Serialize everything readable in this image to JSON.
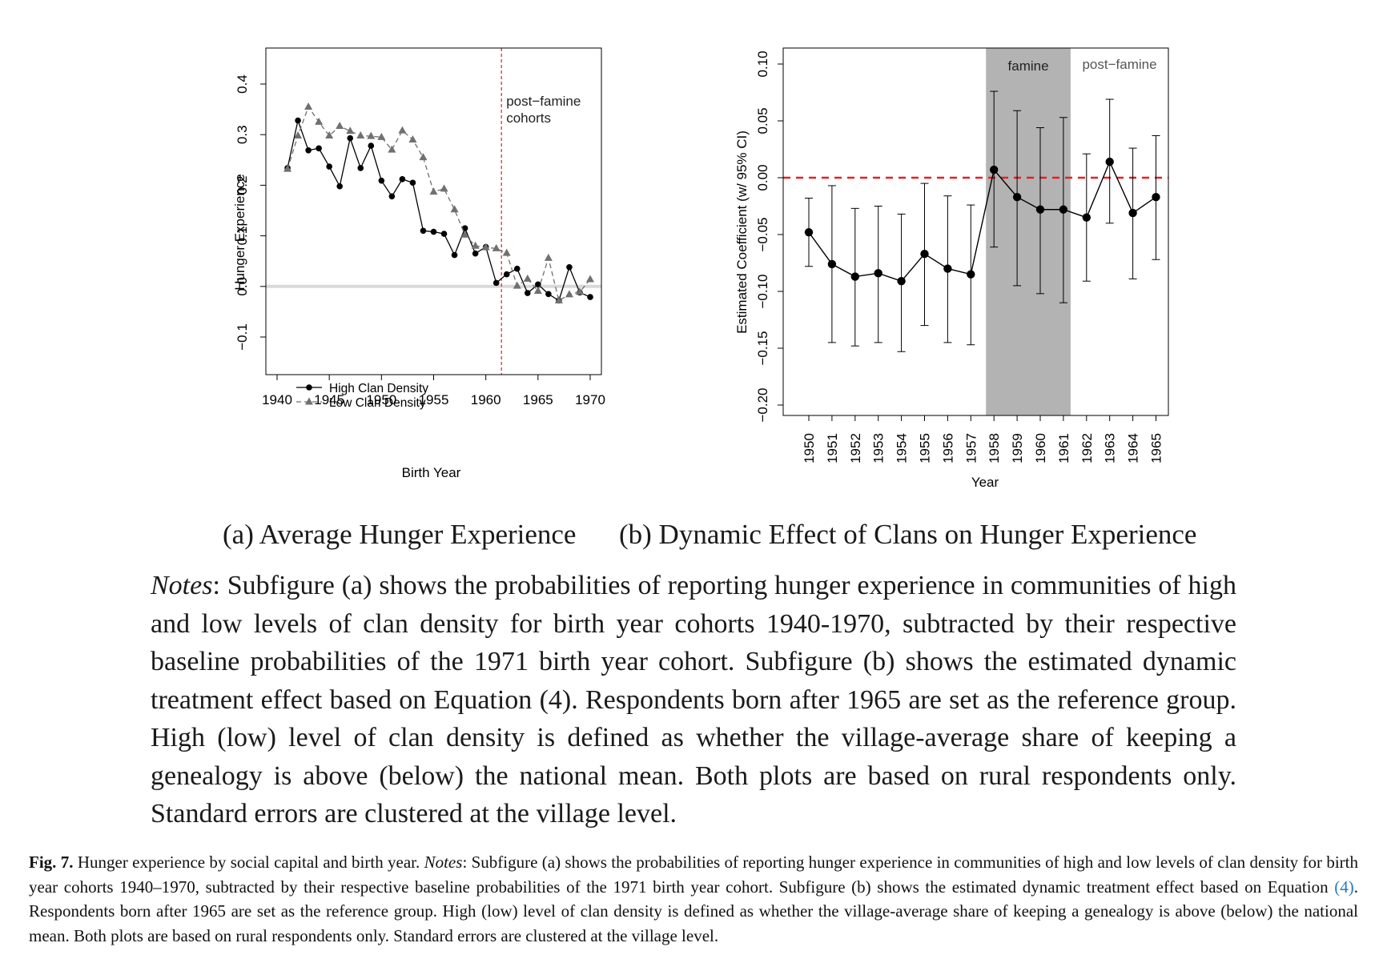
{
  "chart_data": [
    {
      "type": "line",
      "xlabel": "Birth Year",
      "ylabel": "Hunger Experience",
      "xlim": [
        1940,
        1970
      ],
      "ylim": [
        -0.1,
        0.4
      ],
      "x_ticks": [
        "1940",
        "1945",
        "1950",
        "1955",
        "1960",
        "1965",
        "1970"
      ],
      "y_ticks": [
        "−0.1",
        "0.0",
        "0.1",
        "0.2",
        "0.3",
        "0.4"
      ],
      "reference_line": 0.0,
      "vline_x": 1961.5,
      "vline_color": "#e23030",
      "annotation": [
        "post−famine",
        "cohorts"
      ],
      "legend_position": "bottom-left",
      "series": [
        {
          "name": "High Clan Density",
          "style": "solid",
          "marker": "circle",
          "color": "#000000",
          "x": [
            1941,
            1942,
            1943,
            1944,
            1945,
            1946,
            1947,
            1948,
            1949,
            1950,
            1951,
            1952,
            1953,
            1954,
            1955,
            1956,
            1957,
            1958,
            1959,
            1960,
            1961,
            1962,
            1963,
            1964,
            1965,
            1966,
            1967,
            1968,
            1969,
            1970
          ],
          "y": [
            0.234,
            0.328,
            0.269,
            0.273,
            0.237,
            0.198,
            0.293,
            0.234,
            0.278,
            0.209,
            0.178,
            0.212,
            0.205,
            0.11,
            0.108,
            0.104,
            0.062,
            0.115,
            0.065,
            0.078,
            0.007,
            0.024,
            0.035,
            -0.013,
            0.004,
            -0.015,
            -0.028,
            0.038,
            -0.012,
            -0.021
          ]
        },
        {
          "name": "Low Clan Density",
          "style": "dashed",
          "marker": "triangle",
          "color": "#707070",
          "x": [
            1941,
            1942,
            1943,
            1944,
            1945,
            1946,
            1947,
            1948,
            1949,
            1950,
            1951,
            1952,
            1953,
            1954,
            1955,
            1956,
            1957,
            1958,
            1959,
            1960,
            1961,
            1962,
            1963,
            1964,
            1965,
            1966,
            1967,
            1968,
            1969,
            1970
          ],
          "y": [
            0.232,
            0.298,
            0.355,
            0.325,
            0.298,
            0.317,
            0.307,
            0.298,
            0.297,
            0.295,
            0.27,
            0.308,
            0.29,
            0.255,
            0.187,
            0.193,
            0.152,
            0.102,
            0.08,
            0.077,
            0.075,
            0.066,
            0.001,
            0.015,
            -0.009,
            0.056,
            -0.028,
            -0.016,
            -0.011,
            0.014
          ]
        }
      ]
    },
    {
      "type": "scatter",
      "xlabel": "Year",
      "ylabel": "Estimated Coefficient (w/ 95% CI)",
      "ylim": [
        -0.2,
        0.1
      ],
      "categories": [
        "1950",
        "1951",
        "1952",
        "1953",
        "1954",
        "1955",
        "1956",
        "1957",
        "1958",
        "1959",
        "1960",
        "1961",
        "1962",
        "1963",
        "1964",
        "1965"
      ],
      "y_ticks": [
        "−0.20",
        "−0.15",
        "−0.10",
        "−0.05",
        "0.00",
        "0.05",
        "0.10"
      ],
      "estimate": [
        -0.048,
        -0.076,
        -0.087,
        -0.084,
        -0.091,
        -0.067,
        -0.08,
        -0.085,
        0.007,
        -0.017,
        -0.028,
        -0.028,
        -0.035,
        0.014,
        -0.031,
        -0.017
      ],
      "ci_low": [
        -0.078,
        -0.145,
        -0.148,
        -0.145,
        -0.153,
        -0.13,
        -0.145,
        -0.147,
        -0.061,
        -0.095,
        -0.102,
        -0.11,
        -0.091,
        -0.04,
        -0.089,
        -0.072
      ],
      "ci_high": [
        -0.018,
        -0.007,
        -0.027,
        -0.025,
        -0.032,
        -0.005,
        -0.016,
        -0.024,
        0.076,
        0.059,
        0.044,
        0.053,
        0.021,
        0.069,
        0.026,
        0.037
      ],
      "reference_line": 0.0,
      "reference_color": "#ee1c1c",
      "shaded_region": {
        "from": "1958",
        "to": "1961",
        "color": "#b3b3b3",
        "label": "famine"
      },
      "region_label_right": "post−famine"
    }
  ],
  "subcaptions": {
    "a": "(a) Average Hunger Experience",
    "b": "(b) Dynamic Effect of Clans on Hunger Experience"
  },
  "notes": {
    "lead": "Notes",
    "text": ": Subfigure (a) shows the probabilities of reporting hunger experience in communities of high and low levels of clan density for birth year cohorts 1940-1970, subtracted by their respective baseline probabilities of the 1971 birth year cohort. Subfigure (b) shows the estimated dynamic treatment effect based on Equation (4). Respondents born after 1965 are set as the reference group. High (low) level of clan density is defined as whether the village-average share of keeping a genealogy is above (below) the national mean. Both plots are based on rural respondents only. Standard errors are clustered at the village level."
  },
  "caption": {
    "label": "Fig. 7.",
    "title": "Hunger experience by social capital and birth year.",
    "notes_label": "Notes",
    "part1": ": Subfigure (a) shows the probabilities of reporting hunger experience in communities of high and low levels of clan density for birth year cohorts 1940–1970, subtracted by their respective baseline probabilities of the 1971 birth year cohort. Subfigure (b) shows the estimated dynamic treatment effect based on Equation ",
    "ref": "(4)",
    "part2": ". Respondents born after 1965 are set as the reference group. High (low) level of clan density is defined as whether the village-average share of keeping a genealogy is above (below) the national mean. Both plots are based on rural respondents only. Standard errors are clustered at the village level."
  }
}
